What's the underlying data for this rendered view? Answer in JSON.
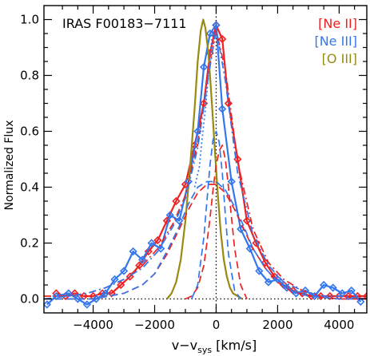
{
  "chart_data": {
    "type": "line",
    "title": "IRAS F00183−7111",
    "xlabel_main": "v−v",
    "xlabel_sub": "sys",
    "xlabel_unit": " [km/s]",
    "ylabel": "Normalized Flux",
    "xlim": [
      -5600,
      4900
    ],
    "ylim": [
      -0.05,
      1.05
    ],
    "xticks": [
      -4000,
      -2000,
      0,
      2000,
      4000
    ],
    "yticks": [
      0.0,
      0.2,
      0.4,
      0.6,
      0.8,
      1.0
    ],
    "yticklabels": [
      "0.0",
      "0.2",
      "0.4",
      "0.6",
      "0.8",
      "1.0"
    ],
    "grid": false,
    "legend_position": "top-right",
    "colors": {
      "ne2": "#ee2222",
      "ne3": "#3377ee",
      "o3": "#9a8a10",
      "ref": "#000000"
    },
    "legend": [
      {
        "label": "[Ne II]",
        "color_key": "ne2"
      },
      {
        "label": "[Ne III]",
        "color_key": "ne3"
      },
      {
        "label": "[O III]",
        "color_key": "o3"
      }
    ],
    "series": [
      {
        "key": "ne2",
        "style": "solid",
        "marker": "diamond",
        "x": [
          -5200,
          -4900,
          -4600,
          -4300,
          -4000,
          -3700,
          -3400,
          -3100,
          -2800,
          -2500,
          -2200,
          -1900,
          -1600,
          -1300,
          -1000,
          -700,
          -400,
          -200,
          0,
          200,
          400,
          700,
          1000,
          1300,
          1600,
          1900,
          2200,
          2500,
          2800,
          3100,
          3400,
          3700,
          4000,
          4300,
          4600,
          4900
        ],
        "y": [
          0.02,
          0.01,
          0.02,
          0.01,
          0.01,
          0.02,
          0.02,
          0.05,
          0.08,
          0.12,
          0.17,
          0.21,
          0.28,
          0.35,
          0.41,
          0.55,
          0.7,
          0.88,
          0.98,
          0.93,
          0.7,
          0.5,
          0.28,
          0.2,
          0.13,
          0.08,
          0.05,
          0.03,
          0.02,
          0.01,
          0.01,
          0.01,
          0.01,
          0.01,
          0.01,
          0.01
        ]
      },
      {
        "key": "ne3",
        "style": "solid",
        "marker": "diamond",
        "x": [
          -5500,
          -5200,
          -4800,
          -4500,
          -4200,
          -3900,
          -3600,
          -3300,
          -3000,
          -2700,
          -2400,
          -2100,
          -1800,
          -1500,
          -1200,
          -900,
          -600,
          -400,
          -200,
          0,
          200,
          500,
          800,
          1100,
          1400,
          1700,
          2000,
          2300,
          2600,
          2900,
          3200,
          3500,
          3800,
          4100,
          4400,
          4700
        ],
        "y": [
          -0.02,
          0.01,
          0.02,
          0.0,
          -0.02,
          0.0,
          0.02,
          0.07,
          0.1,
          0.17,
          0.14,
          0.2,
          0.18,
          0.3,
          0.28,
          0.42,
          0.6,
          0.83,
          0.95,
          0.98,
          0.68,
          0.42,
          0.25,
          0.18,
          0.1,
          0.06,
          0.07,
          0.04,
          0.02,
          0.03,
          0.01,
          0.05,
          0.04,
          0.02,
          0.03,
          -0.01
        ]
      },
      {
        "key": "o3",
        "style": "solid",
        "marker": "none",
        "x": [
          -1600,
          -1450,
          -1300,
          -1150,
          -1000,
          -850,
          -700,
          -600,
          -500,
          -420,
          -350,
          -250,
          -150,
          -50,
          50,
          150,
          250,
          350,
          450,
          550,
          700,
          850
        ],
        "y": [
          0.0,
          0.02,
          0.06,
          0.14,
          0.28,
          0.47,
          0.68,
          0.85,
          0.96,
          1.0,
          0.97,
          0.88,
          0.72,
          0.55,
          0.38,
          0.24,
          0.14,
          0.08,
          0.04,
          0.02,
          0.01,
          0.0
        ]
      },
      {
        "key": "ne2",
        "style": "dashdot",
        "marker": "none",
        "x": [
          -5600,
          -4800,
          -4200,
          -3600,
          -3000,
          -2400,
          -1900,
          -1400,
          -1000,
          -600,
          -300,
          0,
          300,
          700,
          1200,
          1700,
          2200,
          2800,
          3400,
          4000,
          4900
        ],
        "y": [
          0.01,
          0.01,
          0.02,
          0.04,
          0.07,
          0.12,
          0.18,
          0.27,
          0.37,
          0.56,
          0.78,
          0.96,
          0.82,
          0.49,
          0.25,
          0.13,
          0.07,
          0.03,
          0.01,
          0.01,
          0.0
        ]
      },
      {
        "key": "ne3",
        "style": "dashdot",
        "marker": "none",
        "x": [
          -5600,
          -4800,
          -4200,
          -3600,
          -3000,
          -2400,
          -1900,
          -1400,
          -1000,
          -600,
          -300,
          0,
          300,
          700,
          1200,
          1700,
          2200,
          2800,
          3400,
          4000,
          4900
        ],
        "y": [
          0.0,
          0.01,
          0.02,
          0.04,
          0.07,
          0.11,
          0.17,
          0.26,
          0.36,
          0.54,
          0.76,
          0.97,
          0.78,
          0.45,
          0.23,
          0.12,
          0.06,
          0.03,
          0.01,
          0.01,
          0.0
        ]
      },
      {
        "key": "ne2",
        "style": "dashed",
        "marker": "none",
        "x": [
          -5600,
          -4000,
          -3000,
          -2400,
          -2000,
          -1600,
          -1200,
          -900,
          -600,
          -300,
          0,
          300,
          600,
          900,
          1200,
          1600,
          2000,
          2400,
          3000,
          4000,
          4900
        ],
        "y": [
          0.0,
          0.0,
          0.02,
          0.05,
          0.09,
          0.16,
          0.25,
          0.32,
          0.38,
          0.41,
          0.41,
          0.38,
          0.32,
          0.25,
          0.18,
          0.11,
          0.06,
          0.03,
          0.01,
          0.0,
          0.0
        ]
      },
      {
        "key": "ne2",
        "style": "dashed",
        "marker": "none",
        "x": [
          -1000,
          -800,
          -600,
          -400,
          -300,
          -200,
          -100,
          0,
          100,
          200,
          300,
          400,
          600,
          800,
          1000
        ],
        "y": [
          0.0,
          0.01,
          0.04,
          0.12,
          0.2,
          0.29,
          0.39,
          0.48,
          0.53,
          0.55,
          0.5,
          0.4,
          0.18,
          0.05,
          0.0
        ]
      },
      {
        "key": "ne3",
        "style": "dashed",
        "marker": "none",
        "x": [
          -5600,
          -4000,
          -3000,
          -2400,
          -2000,
          -1600,
          -1200,
          -900,
          -600,
          -300,
          0,
          300,
          600,
          900,
          1200,
          1600,
          2000,
          2400,
          3000,
          4000,
          4900
        ],
        "y": [
          0.0,
          0.0,
          0.02,
          0.05,
          0.09,
          0.17,
          0.26,
          0.34,
          0.4,
          0.42,
          0.42,
          0.39,
          0.33,
          0.26,
          0.18,
          0.11,
          0.06,
          0.03,
          0.01,
          0.0,
          0.0
        ]
      },
      {
        "key": "ne3",
        "style": "dashed",
        "marker": "none",
        "x": [
          -800,
          -600,
          -400,
          -300,
          -200,
          -100,
          0,
          100,
          200,
          300,
          400,
          600,
          800
        ],
        "y": [
          0.0,
          0.05,
          0.22,
          0.35,
          0.48,
          0.57,
          0.6,
          0.56,
          0.45,
          0.3,
          0.16,
          0.03,
          0.0
        ]
      },
      {
        "key": "ne3",
        "style": "dotted",
        "marker": "none",
        "x": [
          -700,
          -550,
          -450,
          -350,
          -250,
          -150,
          -50
        ],
        "y": [
          0.4,
          0.47,
          0.58,
          0.68,
          0.8,
          0.92,
          0.99
        ]
      }
    ],
    "reference_lines": [
      {
        "orientation": "vertical",
        "value": 0,
        "style": "dotted"
      },
      {
        "orientation": "horizontal",
        "value": 0,
        "style": "dotted"
      }
    ]
  }
}
